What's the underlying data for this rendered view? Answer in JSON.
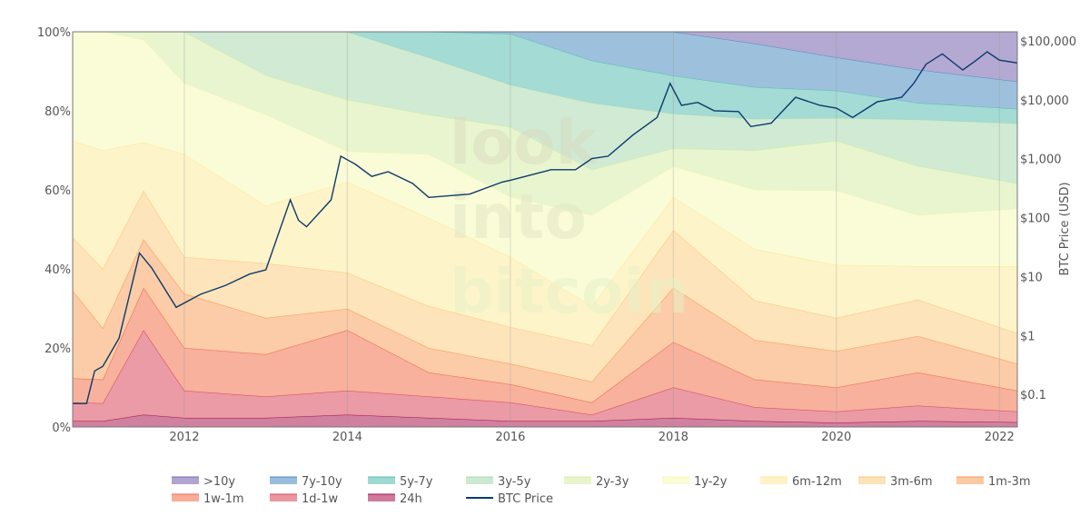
{
  "chart_data": {
    "type": "area",
    "stacked": true,
    "stack_note": "band values are cumulative upper bounds in % of supply, stacked from 24h upward",
    "title": "",
    "watermark": [
      "look",
      "into",
      "bitcoin"
    ],
    "x": [
      2010.63,
      2011.0,
      2011.5,
      2012.0,
      2013.0,
      2014.0,
      2015.0,
      2016.0,
      2017.0,
      2018.0,
      2019.0,
      2020.0,
      2021.0,
      2022.22
    ],
    "xlim": [
      2010.63,
      2022.22
    ],
    "x_ticks": [
      2012,
      2014,
      2016,
      2018,
      2020,
      2022
    ],
    "x_tick_labels": [
      "2012",
      "2014",
      "2016",
      "2018",
      "2020",
      "2022"
    ],
    "ylim": [
      0,
      100
    ],
    "y_ticks": [
      0,
      20,
      40,
      60,
      80,
      100
    ],
    "y_tick_labels": [
      "0%",
      "20%",
      "40%",
      "60%",
      "80%",
      "100%"
    ],
    "y2label": "BTC Price (USD)",
    "y2_scale": "log",
    "y2lim": [
      0.028,
      142000
    ],
    "y2_ticks": [
      0.1,
      1,
      10,
      100,
      1000,
      10000,
      100000
    ],
    "y2_tick_labels": [
      "$0.1",
      "$1",
      "$10",
      "$100",
      "$1,000",
      "$10,000",
      "$100,000"
    ],
    "grid": "vertical",
    "legend_position": "bottom",
    "series": [
      {
        "name": "24h",
        "fill": "#cf7a9b",
        "line": "#a3114a",
        "upper_pct": [
          1.5,
          1.5,
          3.1,
          2.3,
          2.3,
          3.1,
          2.3,
          1.5,
          1.5,
          2.3,
          1.5,
          1.1,
          1.5,
          1.2
        ]
      },
      {
        "name": "1d-1w",
        "fill": "#e996a0",
        "line": "#d9475e",
        "upper_pct": [
          6.2,
          6,
          24.5,
          9.2,
          7.7,
          9.2,
          7.7,
          6.2,
          3.1,
          10,
          5,
          3.9,
          5.4,
          3.9
        ]
      },
      {
        "name": "1w-1m",
        "fill": "#f7ad98",
        "line": "#f06a4f",
        "upper_pct": [
          12.3,
          12,
          35.2,
          20,
          18.4,
          24.5,
          13.8,
          10.8,
          6.2,
          21.5,
          12,
          10,
          13.8,
          9.2
        ]
      },
      {
        "name": "1m-3m",
        "fill": "#fbc9a2",
        "line": "#f99a5b",
        "upper_pct": [
          34.5,
          25,
          47.5,
          33.7,
          27.6,
          29.9,
          20,
          16,
          11.5,
          35.2,
          22,
          19.2,
          23,
          16
        ]
      },
      {
        "name": "3m-6m",
        "fill": "#fde3b6",
        "line": "#fdc57c",
        "upper_pct": [
          48,
          40,
          59.8,
          43,
          41.4,
          39,
          30.6,
          25.3,
          20.7,
          49.8,
          32,
          27.6,
          32.2,
          23.7
        ]
      },
      {
        "name": "6m-12m",
        "fill": "#fef3c6",
        "line": "#fee89a",
        "upper_pct": [
          72.4,
          70,
          72,
          69,
          56,
          62,
          52.9,
          43,
          30.6,
          58.2,
          45,
          41,
          40.7,
          40.7
        ]
      },
      {
        "name": "1y-2y",
        "fill": "#fafcd5",
        "line": "#f4f9b5",
        "upper_pct": [
          100,
          100,
          98,
          87,
          79,
          69.7,
          69,
          58.2,
          53.6,
          65.9,
          60,
          59.8,
          53.6,
          55.2
        ]
      },
      {
        "name": "2y-3y",
        "fill": "#e7f4cc",
        "line": "#d5eea0",
        "upper_pct": [
          100,
          100,
          100,
          100,
          89,
          82.8,
          79,
          75.9,
          65.1,
          70.5,
          70,
          72.4,
          66,
          61.6
        ]
      },
      {
        "name": "3y-5y",
        "fill": "#cde9d2",
        "line": "#a8dcb0",
        "upper_pct": [
          100,
          100,
          100,
          100,
          100,
          100,
          93.5,
          86.6,
          82,
          79.3,
          78,
          78.2,
          77.8,
          76.8
        ]
      },
      {
        "name": "5y-7y",
        "fill": "#9fd9d2",
        "line": "#5bc0b6",
        "upper_pct": [
          100,
          100,
          100,
          100,
          100,
          100,
          100,
          99.5,
          92.7,
          88.9,
          86,
          85.1,
          82,
          80.5
        ]
      },
      {
        "name": "7y-10y",
        "fill": "#98bedb",
        "line": "#4d8fc8",
        "upper_pct": [
          100,
          100,
          100,
          100,
          100,
          100,
          100,
          100,
          100,
          100,
          97,
          93.5,
          90.4,
          87.4
        ]
      },
      {
        "name": ">10y",
        "fill": "#b0a4d0",
        "line": "#7a69b0",
        "upper_pct": [
          100,
          100,
          100,
          100,
          100,
          100,
          100,
          100,
          100,
          100,
          100,
          100,
          100,
          100
        ]
      }
    ],
    "legend_order": [
      ">10y",
      "7y-10y",
      "5y-7y",
      "3y-5y",
      "2y-3y",
      "1y-2y",
      "6m-12m",
      "3m-6m",
      "1m-3m",
      "1w-1m",
      "1d-1w",
      "24h",
      "BTC Price"
    ],
    "price_series": {
      "name": "BTC Price",
      "color": "#0b3a6b",
      "x": [
        2010.63,
        2010.8,
        2010.9,
        2011.0,
        2011.2,
        2011.45,
        2011.6,
        2011.9,
        2012.2,
        2012.5,
        2012.8,
        2013.0,
        2013.3,
        2013.4,
        2013.5,
        2013.8,
        2013.92,
        2014.1,
        2014.3,
        2014.5,
        2014.8,
        2015.0,
        2015.5,
        2015.9,
        2016.0,
        2016.5,
        2016.8,
        2017.0,
        2017.2,
        2017.5,
        2017.8,
        2017.96,
        2018.1,
        2018.3,
        2018.5,
        2018.8,
        2018.95,
        2019.2,
        2019.5,
        2019.8,
        2020.0,
        2020.2,
        2020.5,
        2020.8,
        2020.95,
        2021.1,
        2021.3,
        2021.55,
        2021.7,
        2021.85,
        2022.0,
        2022.22
      ],
      "y": [
        0.07,
        0.07,
        0.25,
        0.3,
        0.9,
        25,
        14,
        3,
        5,
        7,
        11,
        13,
        200,
        90,
        70,
        200,
        1100,
        800,
        500,
        600,
        380,
        220,
        250,
        400,
        430,
        650,
        650,
        1000,
        1100,
        2500,
        5000,
        19000,
        8000,
        9000,
        6500,
        6300,
        3500,
        4000,
        11000,
        8000,
        7200,
        5000,
        9200,
        11000,
        19000,
        40000,
        60000,
        32000,
        45000,
        65000,
        47000,
        42000
      ]
    }
  }
}
